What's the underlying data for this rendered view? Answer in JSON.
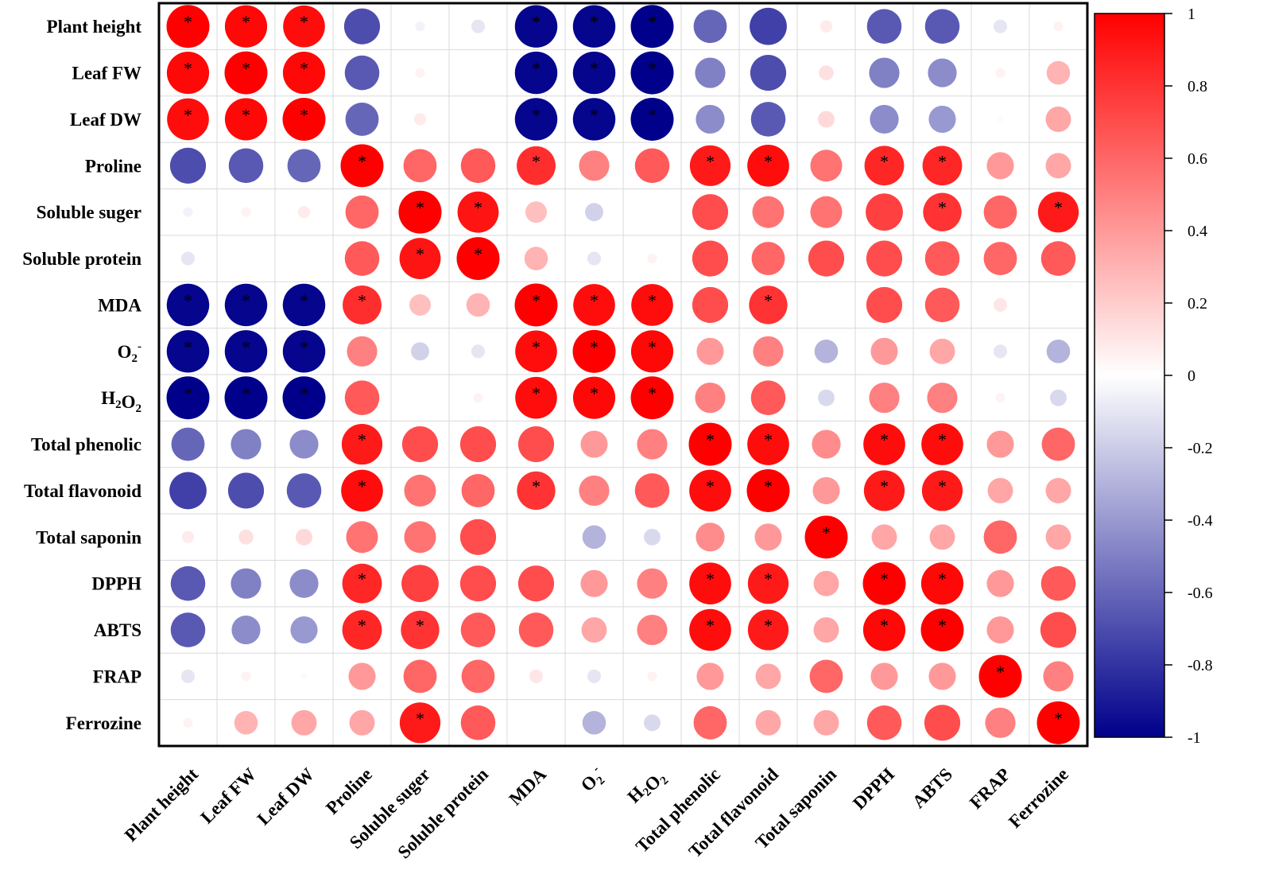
{
  "chart_data": {
    "type": "heatmap",
    "title": "",
    "variables": [
      {
        "text": "Plant height"
      },
      {
        "text": "Leaf FW"
      },
      {
        "text": "Leaf DW"
      },
      {
        "text": "Proline"
      },
      {
        "text": "Soluble suger"
      },
      {
        "text": "Soluble protein"
      },
      {
        "text": "MDA"
      },
      {
        "text": "O",
        "sub": "2",
        "sup": "-"
      },
      {
        "text": "H",
        "sub": "2",
        "text2": "O",
        "sub2": "2"
      },
      {
        "text": "Total phenolic"
      },
      {
        "text": "Total flavonoid"
      },
      {
        "text": "Total saponin"
      },
      {
        "text": "DPPH"
      },
      {
        "text": "ABTS"
      },
      {
        "text": "FRAP"
      },
      {
        "text": "Ferrozine"
      }
    ],
    "matrix": [
      [
        1,
        0.97,
        0.95,
        -0.7,
        -0.05,
        -0.1,
        -0.98,
        -0.98,
        -1,
        -0.6,
        -0.75,
        0.08,
        -0.65,
        -0.65,
        -0.1,
        0.05
      ],
      [
        0.97,
        1,
        0.97,
        -0.65,
        0.05,
        0,
        -0.98,
        -0.98,
        -1,
        -0.5,
        -0.7,
        0.12,
        -0.5,
        -0.45,
        0.05,
        0.3
      ],
      [
        0.95,
        0.97,
        1,
        -0.6,
        0.08,
        0,
        -0.98,
        -0.98,
        -1,
        -0.45,
        -0.65,
        0.15,
        -0.45,
        -0.4,
        0.02,
        0.35
      ],
      [
        -0.7,
        -0.65,
        -0.6,
        1,
        0.6,
        0.65,
        0.82,
        0.5,
        0.65,
        0.9,
        0.95,
        0.55,
        0.85,
        0.85,
        0.4,
        0.35
      ],
      [
        -0.05,
        0.05,
        0.08,
        0.6,
        1,
        0.92,
        0.25,
        -0.18,
        0,
        0.7,
        0.55,
        0.55,
        0.75,
        0.8,
        0.6,
        0.9
      ],
      [
        -0.1,
        0,
        0,
        0.65,
        0.92,
        1,
        0.3,
        -0.1,
        0.05,
        0.7,
        0.6,
        0.7,
        0.7,
        0.65,
        0.6,
        0.65
      ],
      [
        -0.98,
        -0.98,
        -0.98,
        0.82,
        0.25,
        0.3,
        1,
        0.95,
        0.95,
        0.7,
        0.8,
        0,
        0.7,
        0.65,
        0.1,
        0
      ],
      [
        -0.98,
        -0.98,
        -0.98,
        0.5,
        -0.18,
        -0.1,
        0.95,
        1,
        0.97,
        0.4,
        0.5,
        -0.3,
        0.4,
        0.35,
        -0.1,
        -0.3
      ],
      [
        -1,
        -1,
        -1,
        0.65,
        0,
        0.05,
        0.95,
        0.97,
        1,
        0.5,
        0.65,
        -0.15,
        0.5,
        0.5,
        0.05,
        -0.15
      ],
      [
        -0.6,
        -0.5,
        -0.45,
        0.9,
        0.7,
        0.7,
        0.7,
        0.4,
        0.5,
        1,
        0.95,
        0.45,
        0.95,
        0.95,
        0.4,
        0.6
      ],
      [
        -0.75,
        -0.7,
        -0.65,
        0.95,
        0.55,
        0.6,
        0.8,
        0.5,
        0.65,
        0.95,
        1,
        0.4,
        0.9,
        0.9,
        0.35,
        0.35
      ],
      [
        0.08,
        0.12,
        0.15,
        0.55,
        0.55,
        0.7,
        0,
        -0.3,
        -0.15,
        0.45,
        0.4,
        1,
        0.35,
        0.35,
        0.6,
        0.35
      ],
      [
        -0.65,
        -0.5,
        -0.45,
        0.85,
        0.75,
        0.7,
        0.7,
        0.4,
        0.5,
        0.95,
        0.9,
        0.35,
        1,
        0.97,
        0.4,
        0.65
      ],
      [
        -0.65,
        -0.45,
        -0.4,
        0.85,
        0.8,
        0.65,
        0.65,
        0.35,
        0.5,
        0.95,
        0.9,
        0.35,
        0.97,
        1,
        0.4,
        0.7
      ],
      [
        -0.1,
        0.05,
        0.02,
        0.4,
        0.6,
        0.6,
        0.1,
        -0.1,
        0.05,
        0.4,
        0.35,
        0.6,
        0.4,
        0.4,
        1,
        0.5
      ],
      [
        0.05,
        0.3,
        0.35,
        0.35,
        0.9,
        0.65,
        0,
        -0.3,
        -0.15,
        0.6,
        0.35,
        0.35,
        0.65,
        0.7,
        0.5,
        1
      ]
    ],
    "significant": [
      [
        0,
        0
      ],
      [
        0,
        1
      ],
      [
        0,
        2
      ],
      [
        0,
        6
      ],
      [
        0,
        7
      ],
      [
        0,
        8
      ],
      [
        1,
        0
      ],
      [
        1,
        1
      ],
      [
        1,
        2
      ],
      [
        1,
        6
      ],
      [
        1,
        7
      ],
      [
        1,
        8
      ],
      [
        2,
        0
      ],
      [
        2,
        1
      ],
      [
        2,
        2
      ],
      [
        2,
        6
      ],
      [
        2,
        7
      ],
      [
        2,
        8
      ],
      [
        3,
        3
      ],
      [
        3,
        6
      ],
      [
        3,
        9
      ],
      [
        3,
        10
      ],
      [
        3,
        12
      ],
      [
        3,
        13
      ],
      [
        4,
        4
      ],
      [
        4,
        5
      ],
      [
        4,
        13
      ],
      [
        4,
        15
      ],
      [
        5,
        4
      ],
      [
        5,
        5
      ],
      [
        6,
        0
      ],
      [
        6,
        1
      ],
      [
        6,
        2
      ],
      [
        6,
        3
      ],
      [
        6,
        6
      ],
      [
        6,
        7
      ],
      [
        6,
        8
      ],
      [
        6,
        10
      ],
      [
        7,
        0
      ],
      [
        7,
        1
      ],
      [
        7,
        2
      ],
      [
        7,
        6
      ],
      [
        7,
        7
      ],
      [
        7,
        8
      ],
      [
        8,
        0
      ],
      [
        8,
        1
      ],
      [
        8,
        2
      ],
      [
        8,
        6
      ],
      [
        8,
        7
      ],
      [
        8,
        8
      ],
      [
        9,
        3
      ],
      [
        9,
        9
      ],
      [
        9,
        10
      ],
      [
        9,
        12
      ],
      [
        9,
        13
      ],
      [
        10,
        3
      ],
      [
        10,
        6
      ],
      [
        10,
        9
      ],
      [
        10,
        10
      ],
      [
        10,
        12
      ],
      [
        10,
        13
      ],
      [
        11,
        11
      ],
      [
        12,
        3
      ],
      [
        12,
        9
      ],
      [
        12,
        10
      ],
      [
        12,
        12
      ],
      [
        12,
        13
      ],
      [
        13,
        3
      ],
      [
        13,
        4
      ],
      [
        13,
        9
      ],
      [
        13,
        10
      ],
      [
        13,
        12
      ],
      [
        13,
        13
      ],
      [
        14,
        14
      ],
      [
        15,
        4
      ],
      [
        15,
        15
      ]
    ],
    "significance_mark": "*",
    "colorbar": {
      "range": [
        -1,
        1
      ],
      "ticks": [
        "1",
        "0.8",
        "0.6",
        "0.4",
        "0.2",
        "0",
        "-0.2",
        "-0.4",
        "-0.6",
        "-0.8",
        "-1"
      ],
      "colors": {
        "negative": "#00008b",
        "zero": "#ffffff",
        "positive": "#ff0000"
      }
    }
  }
}
